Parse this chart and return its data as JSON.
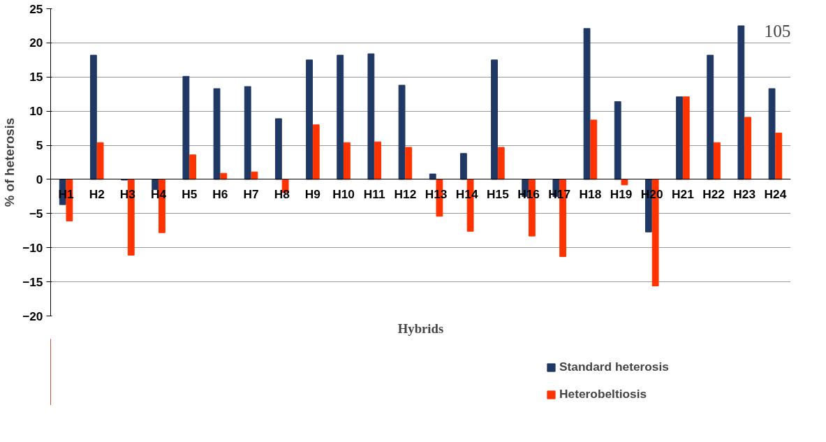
{
  "chart_data": {
    "type": "bar",
    "xlabel": "Hybrids",
    "ylabel": "% of heterosis",
    "categories": [
      "H1",
      "H2",
      "H3",
      "H4",
      "H5",
      "H6",
      "H7",
      "H8",
      "H9",
      "H10",
      "H11",
      "H12",
      "H13",
      "H14",
      "H15",
      "H16",
      "H17",
      "H18",
      "H19",
      "H20",
      "H21",
      "H22",
      "H23",
      "H24"
    ],
    "series": [
      {
        "name": "Standard heterosis",
        "color": "#1f3864",
        "values": [
          -3.7,
          18.2,
          -0.1,
          -1.5,
          15.1,
          13.3,
          13.6,
          8.9,
          17.5,
          18.2,
          18.4,
          13.8,
          0.8,
          3.8,
          17.5,
          -2.5,
          -2.5,
          22.1,
          11.4,
          -7.7,
          12.1,
          18.2,
          22.5,
          13.3
        ]
      },
      {
        "name": "Heterobeltiosis",
        "color": "#ff3300",
        "values": [
          -6.1,
          5.4,
          -11.1,
          -7.8,
          3.6,
          0.9,
          1.1,
          -1.9,
          8.0,
          5.4,
          5.5,
          4.7,
          -5.4,
          -7.6,
          4.7,
          -8.3,
          -11.3,
          8.7,
          -0.8,
          -15.6,
          12.1,
          5.4,
          9.1,
          6.8
        ]
      }
    ],
    "ylim": [
      -20,
      25
    ],
    "yticks": [
      -20,
      -15,
      -10,
      -5,
      0,
      5,
      10,
      15,
      20,
      25
    ],
    "grid": "y",
    "legend": "bottom right",
    "annotations": [
      "105"
    ]
  }
}
